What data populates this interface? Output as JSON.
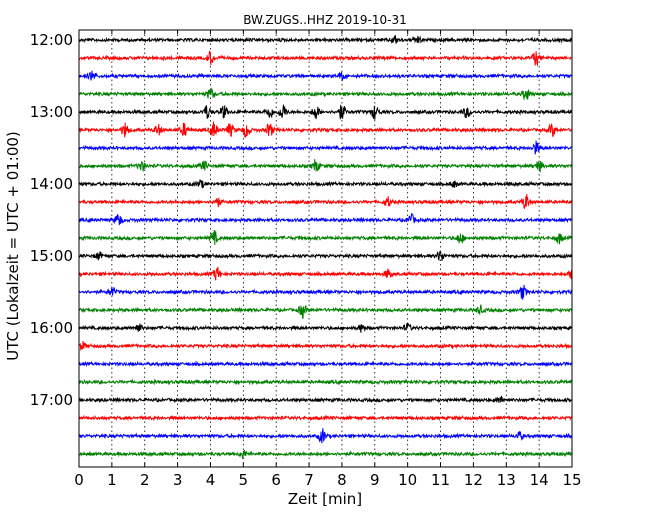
{
  "chart_data": {
    "type": "line",
    "title": "BW.ZUGS..HHZ 2019-10-31",
    "xlabel": "Zeit  [min]",
    "ylabel": "UTC (Lokalzeit = UTC + 01:00)",
    "xlim": [
      0,
      15
    ],
    "x_ticks": [
      "0",
      "1",
      "2",
      "3",
      "4",
      "5",
      "6",
      "7",
      "8",
      "9",
      "10",
      "11",
      "12",
      "13",
      "14",
      "15"
    ],
    "y_tick_labels": [
      "12:00",
      "13:00",
      "14:00",
      "15:00",
      "16:00",
      "17:00"
    ],
    "grid": "vertical dotted",
    "colors": [
      "#000000",
      "#ff0000",
      "#0000ff",
      "#008000"
    ],
    "traces": [
      {
        "label": "12:00",
        "color": "#000000",
        "events": [
          [
            9.6,
            0.5
          ],
          [
            10.3,
            0.4
          ]
        ]
      },
      {
        "label": "12:15",
        "color": "#ff0000",
        "events": [
          [
            4.0,
            0.8
          ],
          [
            13.9,
            0.9
          ]
        ]
      },
      {
        "label": "12:30",
        "color": "#0000ff",
        "events": [
          [
            0.4,
            0.7
          ],
          [
            8.0,
            0.4
          ]
        ]
      },
      {
        "label": "12:45",
        "color": "#008000",
        "events": [
          [
            4.0,
            0.7
          ],
          [
            13.6,
            0.8
          ]
        ]
      },
      {
        "label": "13:00",
        "color": "#000000",
        "events": [
          [
            3.9,
            0.9
          ],
          [
            4.4,
            0.8
          ],
          [
            5.8,
            0.8
          ],
          [
            6.2,
            1.0
          ],
          [
            7.2,
            0.9
          ],
          [
            8.0,
            1.0
          ],
          [
            9.0,
            0.9
          ],
          [
            11.8,
            0.7
          ]
        ]
      },
      {
        "label": "13:15",
        "color": "#ff0000",
        "events": [
          [
            1.4,
            0.9
          ],
          [
            2.4,
            0.7
          ],
          [
            3.2,
            0.8
          ],
          [
            4.1,
            1.0
          ],
          [
            4.6,
            0.8
          ],
          [
            5.1,
            1.0
          ],
          [
            5.8,
            0.9
          ],
          [
            14.4,
            0.8
          ]
        ]
      },
      {
        "label": "13:30",
        "color": "#0000ff",
        "events": [
          [
            13.9,
            0.8
          ]
        ]
      },
      {
        "label": "13:45",
        "color": "#008000",
        "events": [
          [
            1.9,
            0.7
          ],
          [
            3.8,
            0.6
          ],
          [
            7.2,
            0.8
          ],
          [
            14.0,
            0.7
          ]
        ]
      },
      {
        "label": "14:00",
        "color": "#000000",
        "events": [
          [
            3.7,
            0.5
          ],
          [
            11.4,
            0.4
          ]
        ]
      },
      {
        "label": "14:15",
        "color": "#ff0000",
        "events": [
          [
            4.2,
            0.6
          ],
          [
            9.4,
            0.6
          ],
          [
            13.6,
            1.0
          ]
        ]
      },
      {
        "label": "14:30",
        "color": "#0000ff",
        "events": [
          [
            1.2,
            0.8
          ],
          [
            10.1,
            0.7
          ]
        ]
      },
      {
        "label": "14:45",
        "color": "#008000",
        "events": [
          [
            4.1,
            0.9
          ],
          [
            11.6,
            0.7
          ],
          [
            14.6,
            0.7
          ]
        ]
      },
      {
        "label": "15:00",
        "color": "#000000",
        "events": [
          [
            0.6,
            0.5
          ],
          [
            11.0,
            0.7
          ]
        ]
      },
      {
        "label": "15:15",
        "color": "#ff0000",
        "events": [
          [
            4.2,
            0.9
          ],
          [
            9.4,
            0.6
          ],
          [
            15.0,
            0.6
          ]
        ]
      },
      {
        "label": "15:30",
        "color": "#0000ff",
        "events": [
          [
            1.0,
            0.6
          ],
          [
            13.5,
            0.9
          ]
        ]
      },
      {
        "label": "15:45",
        "color": "#008000",
        "events": [
          [
            6.8,
            0.9
          ],
          [
            12.2,
            0.5
          ]
        ]
      },
      {
        "label": "16:00",
        "color": "#000000",
        "events": [
          [
            1.8,
            0.6
          ],
          [
            8.6,
            0.5
          ],
          [
            10.0,
            0.5
          ]
        ]
      },
      {
        "label": "16:15",
        "color": "#ff0000",
        "events": [
          [
            0.1,
            0.5
          ]
        ]
      },
      {
        "label": "16:30",
        "color": "#0000ff",
        "events": []
      },
      {
        "label": "16:45",
        "color": "#008000",
        "events": []
      },
      {
        "label": "17:00",
        "color": "#000000",
        "events": [
          [
            12.8,
            0.4
          ]
        ]
      },
      {
        "label": "17:15",
        "color": "#ff0000",
        "events": []
      },
      {
        "label": "17:30",
        "color": "#0000ff",
        "events": [
          [
            7.4,
            0.9
          ],
          [
            13.4,
            0.5
          ]
        ]
      },
      {
        "label": "17:45",
        "color": "#008000",
        "events": [
          [
            5.0,
            0.5
          ]
        ]
      }
    ]
  }
}
